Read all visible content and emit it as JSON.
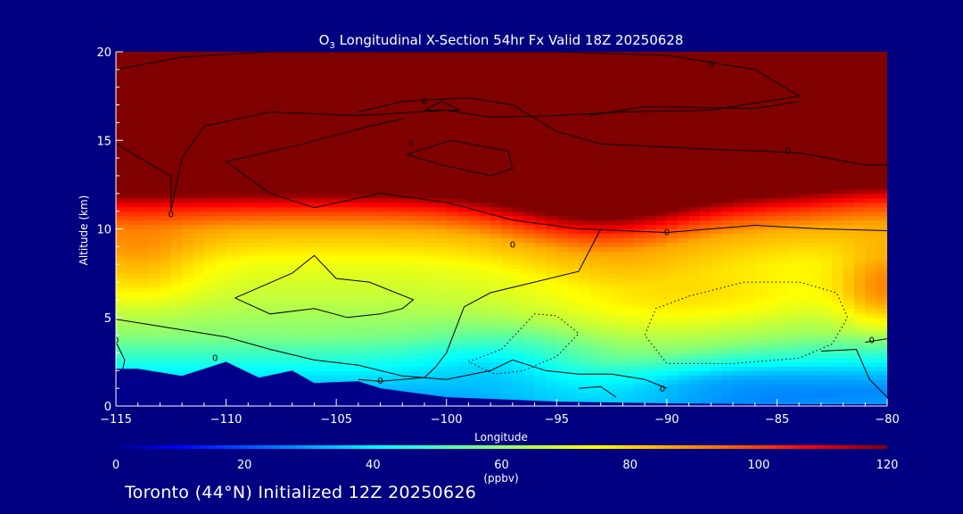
{
  "chart_data": {
    "type": "heatmap",
    "title_species": "O",
    "title_subscript": "3",
    "title_rest": " Longitudinal X-Section 54hr  Fx Valid 18Z 20250628",
    "xlabel": "Longitude",
    "ylabel": "Altitude (km)",
    "xlim": [
      -115,
      -80
    ],
    "ylim": [
      0,
      20
    ],
    "x_ticks": [
      -115,
      -110,
      -105,
      -100,
      -95,
      -90,
      -85,
      -80
    ],
    "x_tick_labels": [
      "−115",
      "−110",
      "−105",
      "−100",
      "−95",
      "−90",
      "−85",
      "−80"
    ],
    "y_ticks": [
      0,
      5,
      10,
      15,
      20
    ],
    "y_tick_labels": [
      "0",
      "5",
      "10",
      "15",
      "20"
    ],
    "colorbar": {
      "range": [
        0,
        120
      ],
      "ticks": [
        0,
        20,
        40,
        60,
        80,
        100,
        120
      ],
      "tick_labels": [
        "0",
        "20",
        "40",
        "60",
        "80",
        "100",
        "120"
      ],
      "label_top": "60",
      "units": "(ppbv)"
    },
    "field_description_values": {
      "lon": [
        -115,
        -110,
        -105,
        -100,
        -95,
        -90,
        -85,
        -80
      ],
      "ozone_base_ppbv_by_altitude_km": [
        {
          "z": 0.5,
          "ppbv": 30
        },
        {
          "z": 2,
          "ppbv": 40
        },
        {
          "z": 4,
          "ppbv": 58
        },
        {
          "z": 6,
          "ppbv": 66
        },
        {
          "z": 8,
          "ppbv": 72
        },
        {
          "z": 10,
          "ppbv": 85
        },
        {
          "z": 11,
          "ppbv": 100
        },
        {
          "z": 12,
          "ppbv": 120
        },
        {
          "z": 20,
          "ppbv": 120
        }
      ]
    },
    "contour_labels": [
      "0",
      "0",
      "0",
      "0",
      "0",
      "0",
      "0",
      "0",
      "0",
      "0",
      "0",
      "0"
    ],
    "terrain_km": [
      {
        "lon": -115,
        "z": 2.1
      },
      {
        "lon": -114,
        "z": 2.1
      },
      {
        "lon": -113.5,
        "z": 2.0
      },
      {
        "lon": -112,
        "z": 1.7
      },
      {
        "lon": -110,
        "z": 2.5
      },
      {
        "lon": -108.5,
        "z": 1.6
      },
      {
        "lon": -107,
        "z": 2.0
      },
      {
        "lon": -106,
        "z": 1.3
      },
      {
        "lon": -104,
        "z": 1.4
      },
      {
        "lon": -103,
        "z": 1.0
      },
      {
        "lon": -100,
        "z": 0.5
      },
      {
        "lon": -95,
        "z": 0.25
      },
      {
        "lon": -90,
        "z": 0.15
      },
      {
        "lon": -85,
        "z": 0.1
      },
      {
        "lon": -80,
        "z": 0.1
      }
    ]
  },
  "footer": {
    "text": "Toronto (44°N) Initialized 12Z 20250626"
  },
  "colors": {
    "background": "#000080",
    "terrain": "#00008b",
    "axis": "#ffffff",
    "contour": "#000000"
  }
}
